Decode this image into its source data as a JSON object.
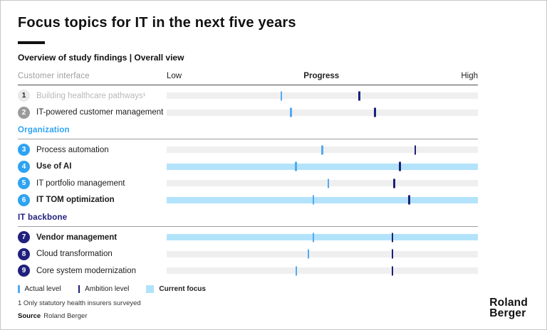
{
  "header": {
    "title": "Focus topics for IT in the next five years",
    "subtitle": "Overview of study findings | Overall view"
  },
  "axis": {
    "low": "Low",
    "center": "Progress",
    "high": "High"
  },
  "chart_data": {
    "type": "dumbbell",
    "scale_note": "positions are percent of track from Low (0) to High (100)",
    "axis_labels": [
      "Low",
      "Progress",
      "High"
    ],
    "sections": [
      {
        "name": "Customer interface",
        "name_color": "#9e9e9e",
        "rows": [
          {
            "num": "1",
            "label": "Building healthcare pathways¹",
            "muted": true,
            "bold": false,
            "focus": false,
            "actual_pct": 36.6,
            "ambition_pct": 61.6,
            "badge_bg": "#e9e9e9",
            "badge_fg": "#222222"
          },
          {
            "num": "2",
            "label": "IT-powered customer management",
            "muted": false,
            "bold": false,
            "focus": false,
            "actual_pct": 39.6,
            "ambition_pct": 66.6,
            "badge_bg": "#9b9b9b",
            "badge_fg": "#ffffff"
          }
        ]
      },
      {
        "name": "Organization",
        "name_color": "#2ea3f2",
        "rows": [
          {
            "num": "3",
            "label": "Process automation",
            "muted": false,
            "bold": false,
            "focus": false,
            "actual_pct": 49.7,
            "ambition_pct": 79.6,
            "badge_bg": "#2ea3f2",
            "badge_fg": "#ffffff"
          },
          {
            "num": "4",
            "label": "Use of AI",
            "muted": false,
            "bold": true,
            "focus": true,
            "actual_pct": 41.2,
            "ambition_pct": 74.6,
            "badge_bg": "#2ea3f2",
            "badge_fg": "#ffffff"
          },
          {
            "num": "5",
            "label": "IT portfolio management",
            "muted": false,
            "bold": false,
            "focus": false,
            "actual_pct": 51.7,
            "ambition_pct": 72.8,
            "badge_bg": "#2ea3f2",
            "badge_fg": "#ffffff"
          },
          {
            "num": "6",
            "label": "IT TOM optimization",
            "muted": false,
            "bold": true,
            "focus": true,
            "actual_pct": 46.9,
            "ambition_pct": 77.6,
            "badge_bg": "#2ea3f2",
            "badge_fg": "#ffffff"
          }
        ]
      },
      {
        "name": "IT backbone",
        "name_color": "#23227f",
        "rows": [
          {
            "num": "7",
            "label": "Vendor management",
            "muted": false,
            "bold": true,
            "focus": true,
            "actual_pct": 46.9,
            "ambition_pct": 72.3,
            "badge_bg": "#20207d",
            "badge_fg": "#ffffff"
          },
          {
            "num": "8",
            "label": "Cloud transformation",
            "muted": false,
            "bold": false,
            "focus": false,
            "actual_pct": 45.3,
            "ambition_pct": 72.3,
            "badge_bg": "#20207d",
            "badge_fg": "#ffffff"
          },
          {
            "num": "9",
            "label": "Core system modernization",
            "muted": false,
            "bold": false,
            "focus": false,
            "actual_pct": 41.4,
            "ambition_pct": 72.3,
            "badge_bg": "#20207d",
            "badge_fg": "#ffffff"
          }
        ]
      }
    ]
  },
  "legend": {
    "actual": "Actual level",
    "ambition": "Ambition level",
    "focus": "Current focus"
  },
  "footnote": "1 Only statutory health insurers surveyed",
  "source": {
    "label": "Source",
    "value": "Roland Berger"
  },
  "logo": {
    "line1": "Roland",
    "line2": "Berger"
  },
  "colors": {
    "actual_tick": "#54a9f0",
    "ambition_tick": "#1d2077",
    "focus_bar": "#b3e3fb",
    "track": "#efefef",
    "accent_blue": "#2ea3f2",
    "navy": "#23227f"
  }
}
